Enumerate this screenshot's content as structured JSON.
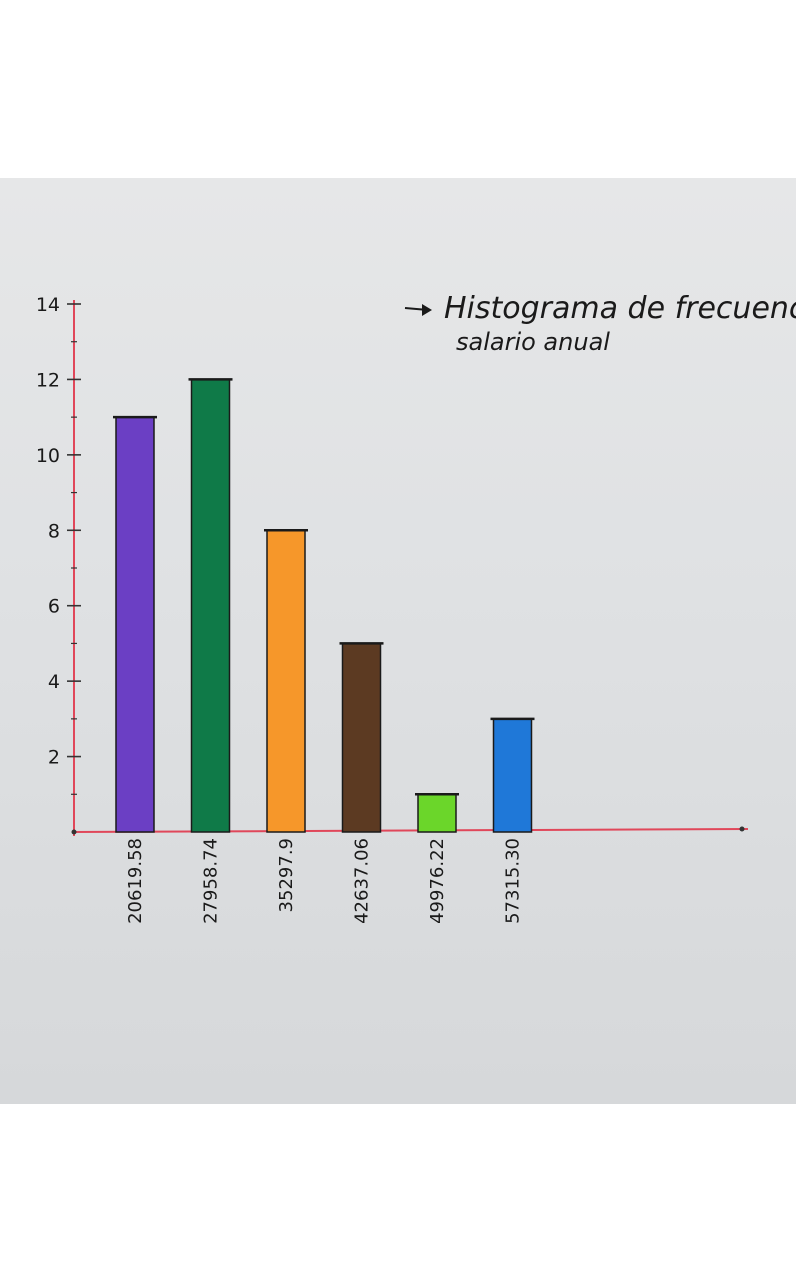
{
  "chart_data": {
    "type": "bar",
    "title": "Histograma de frecuencias",
    "subtitle": "salario anual",
    "categories": [
      "20619.58",
      "27958.74",
      "35297.9",
      "42637.06",
      "49976.22",
      "57315.30"
    ],
    "values": [
      11,
      12,
      8,
      5,
      1,
      3
    ],
    "colors": [
      "#6b3fc4",
      "#0f7a48",
      "#f6972a",
      "#5c3a22",
      "#6bd62a",
      "#1f78d8"
    ],
    "yticks": [
      "2",
      "4",
      "6",
      "8",
      "10",
      "12",
      "14"
    ],
    "ylim": [
      0,
      14
    ],
    "xlabel": "",
    "ylabel": "",
    "grid": false,
    "axis_color": "#e0475a"
  }
}
